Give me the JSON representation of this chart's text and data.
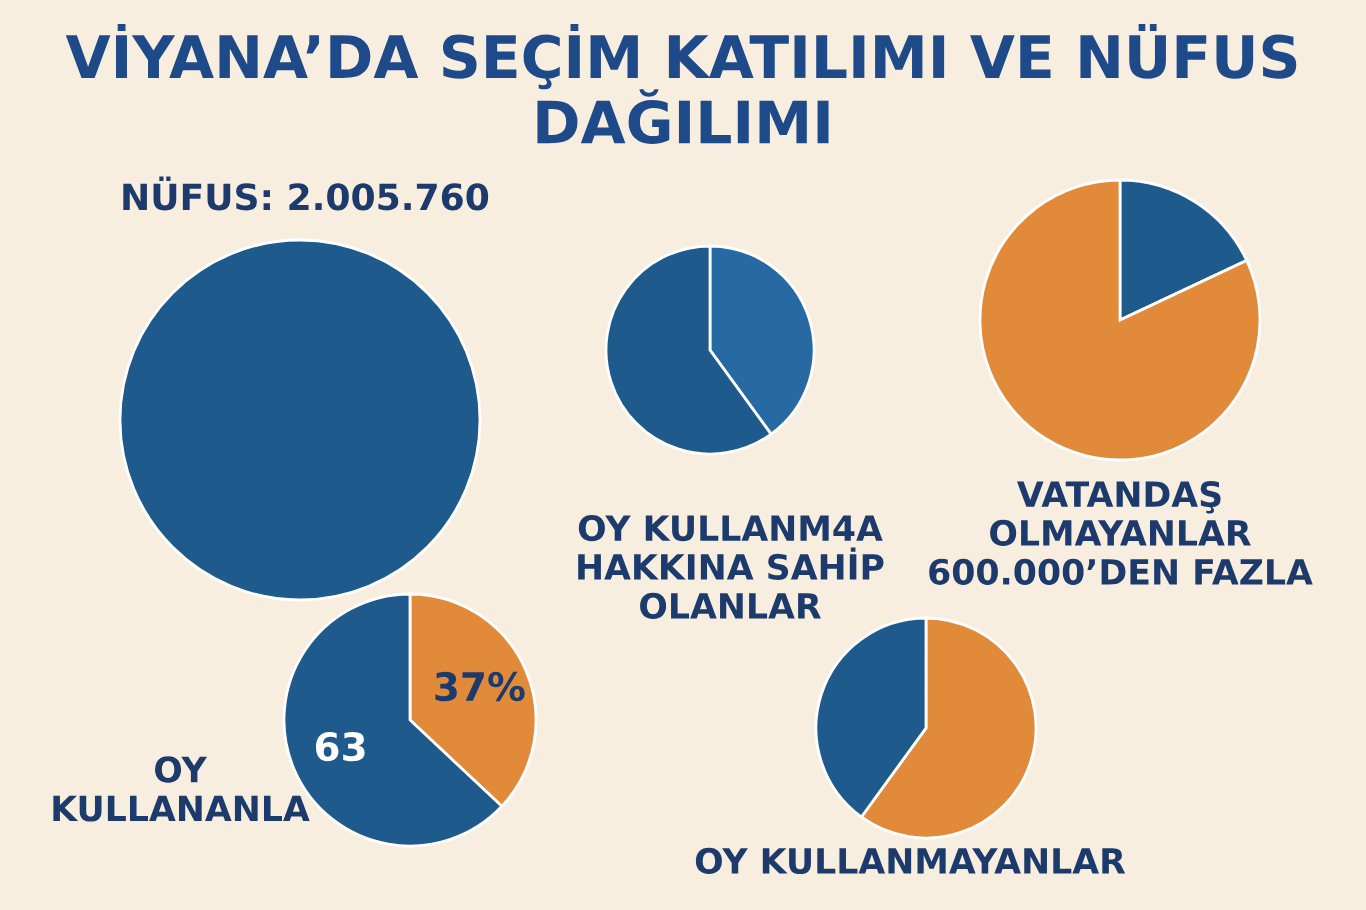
{
  "chart_data": [
    {
      "type": "pie",
      "title": "VİYANA’DA SEÇİM KATILIMI VE NÜFUS DAĞILIMI",
      "subtitle": "NÜFUS: 2.005.760",
      "categories": [
        null
      ],
      "values": [
        100
      ],
      "colors": [
        "#1f5a8c"
      ]
    },
    {
      "type": "pie",
      "xlabel": "OY KULLANM4A\nHAKKINA SAHİP\nOLANLAR",
      "categories": [
        null,
        null
      ],
      "values": [
        40,
        60
      ],
      "colors": [
        "#2669a3",
        "#1f5a8c"
      ]
    },
    {
      "type": "pie",
      "xlabel": "VATANDAŞ\nOLMAYANLAR\n600.000’DEN FAZLA",
      "categories": [
        null,
        null
      ],
      "values": [
        18,
        82
      ],
      "colors": [
        "#1f5a8c",
        "#e08a3a"
      ]
    },
    {
      "type": "pie",
      "ylabel": "OY\nKULLANANLA",
      "categories": [
        null,
        null
      ],
      "values": [
        37,
        63
      ],
      "colors": [
        "#e08a3a",
        "#1f5a8c"
      ],
      "value_labels": [
        "37%",
        "63"
      ]
    },
    {
      "type": "pie",
      "xlabel": "OY KULLANMAYANLAR",
      "categories": [
        null,
        null
      ],
      "values": [
        60,
        40
      ],
      "colors": [
        "#e08a3a",
        "#1f5a8c"
      ]
    }
  ]
}
